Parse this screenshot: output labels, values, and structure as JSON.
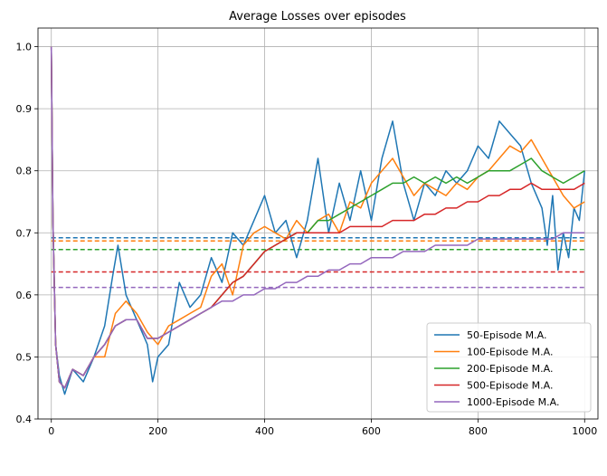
{
  "chart_data": {
    "type": "line",
    "title": "Average Losses over episodes",
    "xlabel": "",
    "ylabel": "",
    "xlim": [
      -25,
      1025
    ],
    "ylim": [
      0.4,
      1.03
    ],
    "xticks": [
      0,
      200,
      400,
      600,
      800,
      1000
    ],
    "yticks": [
      0.4,
      0.5,
      0.6,
      0.7,
      0.8,
      0.9,
      1.0
    ],
    "xtick_labels": [
      "0",
      "200",
      "400",
      "600",
      "800",
      "1000"
    ],
    "ytick_labels": [
      "0.4",
      "0.5",
      "0.6",
      "0.7",
      "0.8",
      "0.9",
      "1.0"
    ],
    "grid": true,
    "legend_position": "bottom-right",
    "series": [
      {
        "name": "50-Episode M.A.",
        "color": "#1f77b4",
        "mean": 0.692,
        "x": [
          0,
          3,
          8,
          15,
          25,
          40,
          60,
          80,
          100,
          115,
          125,
          140,
          160,
          180,
          190,
          200,
          220,
          240,
          260,
          280,
          300,
          320,
          340,
          360,
          380,
          400,
          420,
          440,
          460,
          480,
          500,
          520,
          540,
          560,
          580,
          600,
          620,
          640,
          660,
          680,
          700,
          720,
          740,
          760,
          780,
          800,
          820,
          840,
          860,
          880,
          900,
          920,
          930,
          940,
          950,
          960,
          970,
          980,
          990,
          1000
        ],
        "y": [
          1.0,
          0.72,
          0.52,
          0.47,
          0.44,
          0.48,
          0.46,
          0.5,
          0.55,
          0.63,
          0.68,
          0.6,
          0.56,
          0.52,
          0.46,
          0.5,
          0.52,
          0.62,
          0.58,
          0.6,
          0.66,
          0.62,
          0.7,
          0.68,
          0.72,
          0.76,
          0.7,
          0.72,
          0.66,
          0.72,
          0.82,
          0.7,
          0.78,
          0.72,
          0.8,
          0.72,
          0.82,
          0.88,
          0.78,
          0.72,
          0.78,
          0.76,
          0.8,
          0.78,
          0.8,
          0.84,
          0.82,
          0.88,
          0.86,
          0.84,
          0.78,
          0.74,
          0.68,
          0.76,
          0.64,
          0.7,
          0.66,
          0.74,
          0.72,
          0.8
        ]
      },
      {
        "name": "100-Episode M.A.",
        "color": "#ff7f0e",
        "mean": 0.687,
        "x": [
          0,
          3,
          8,
          15,
          25,
          40,
          60,
          80,
          100,
          120,
          140,
          160,
          180,
          200,
          220,
          240,
          260,
          280,
          300,
          320,
          340,
          360,
          380,
          400,
          420,
          440,
          460,
          480,
          500,
          520,
          540,
          560,
          580,
          600,
          620,
          640,
          660,
          680,
          700,
          720,
          740,
          760,
          780,
          800,
          820,
          840,
          860,
          880,
          900,
          920,
          940,
          960,
          980,
          1000
        ],
        "y": [
          1.0,
          0.72,
          0.52,
          0.46,
          0.45,
          0.48,
          0.47,
          0.5,
          0.5,
          0.57,
          0.59,
          0.57,
          0.54,
          0.52,
          0.55,
          0.56,
          0.57,
          0.58,
          0.63,
          0.65,
          0.6,
          0.68,
          0.7,
          0.71,
          0.7,
          0.69,
          0.72,
          0.7,
          0.72,
          0.73,
          0.7,
          0.75,
          0.74,
          0.78,
          0.8,
          0.82,
          0.79,
          0.76,
          0.78,
          0.77,
          0.76,
          0.78,
          0.77,
          0.79,
          0.8,
          0.82,
          0.84,
          0.83,
          0.85,
          0.82,
          0.79,
          0.76,
          0.74,
          0.75
        ]
      },
      {
        "name": "200-Episode M.A.",
        "color": "#2ca02c",
        "mean": 0.673,
        "x": [
          0,
          3,
          8,
          15,
          25,
          40,
          60,
          80,
          100,
          120,
          140,
          160,
          180,
          200,
          220,
          240,
          260,
          280,
          300,
          320,
          340,
          360,
          380,
          400,
          420,
          440,
          460,
          480,
          500,
          520,
          540,
          560,
          580,
          600,
          620,
          640,
          660,
          680,
          700,
          720,
          740,
          760,
          780,
          800,
          820,
          840,
          860,
          880,
          900,
          920,
          940,
          960,
          980,
          1000
        ],
        "y": [
          1.0,
          0.72,
          0.52,
          0.46,
          0.45,
          0.48,
          0.47,
          0.5,
          0.52,
          0.55,
          0.56,
          0.56,
          0.53,
          0.53,
          0.54,
          0.55,
          0.56,
          0.57,
          0.58,
          0.6,
          0.62,
          0.63,
          0.65,
          0.67,
          0.68,
          0.69,
          0.7,
          0.7,
          0.72,
          0.72,
          0.73,
          0.74,
          0.75,
          0.76,
          0.77,
          0.78,
          0.78,
          0.79,
          0.78,
          0.79,
          0.78,
          0.79,
          0.78,
          0.79,
          0.8,
          0.8,
          0.8,
          0.81,
          0.82,
          0.8,
          0.79,
          0.78,
          0.79,
          0.8
        ]
      },
      {
        "name": "500-Episode M.A.",
        "color": "#d62728",
        "mean": 0.637,
        "x": [
          0,
          3,
          8,
          15,
          25,
          40,
          60,
          80,
          100,
          120,
          140,
          160,
          180,
          200,
          220,
          240,
          260,
          280,
          300,
          320,
          340,
          360,
          380,
          400,
          420,
          440,
          460,
          480,
          500,
          520,
          540,
          560,
          580,
          600,
          620,
          640,
          660,
          680,
          700,
          720,
          740,
          760,
          780,
          800,
          820,
          840,
          860,
          880,
          900,
          920,
          940,
          960,
          980,
          1000
        ],
        "y": [
          1.0,
          0.72,
          0.52,
          0.46,
          0.45,
          0.48,
          0.47,
          0.5,
          0.52,
          0.55,
          0.56,
          0.56,
          0.53,
          0.53,
          0.54,
          0.55,
          0.56,
          0.57,
          0.58,
          0.6,
          0.62,
          0.63,
          0.65,
          0.67,
          0.68,
          0.69,
          0.7,
          0.7,
          0.7,
          0.7,
          0.7,
          0.71,
          0.71,
          0.71,
          0.71,
          0.72,
          0.72,
          0.72,
          0.73,
          0.73,
          0.74,
          0.74,
          0.75,
          0.75,
          0.76,
          0.76,
          0.77,
          0.77,
          0.78,
          0.77,
          0.77,
          0.77,
          0.77,
          0.78
        ]
      },
      {
        "name": "1000-Episode M.A.",
        "color": "#9467bd",
        "mean": 0.612,
        "x": [
          0,
          3,
          8,
          15,
          25,
          40,
          60,
          80,
          100,
          120,
          140,
          160,
          180,
          200,
          220,
          240,
          260,
          280,
          300,
          320,
          340,
          360,
          380,
          400,
          420,
          440,
          460,
          480,
          500,
          520,
          540,
          560,
          580,
          600,
          620,
          640,
          660,
          680,
          700,
          720,
          740,
          760,
          780,
          800,
          820,
          840,
          860,
          880,
          900,
          920,
          940,
          960,
          980,
          1000
        ],
        "y": [
          1.0,
          0.72,
          0.52,
          0.46,
          0.45,
          0.48,
          0.47,
          0.5,
          0.52,
          0.55,
          0.56,
          0.56,
          0.53,
          0.53,
          0.54,
          0.55,
          0.56,
          0.57,
          0.58,
          0.59,
          0.59,
          0.6,
          0.6,
          0.61,
          0.61,
          0.62,
          0.62,
          0.63,
          0.63,
          0.64,
          0.64,
          0.65,
          0.65,
          0.66,
          0.66,
          0.66,
          0.67,
          0.67,
          0.67,
          0.68,
          0.68,
          0.68,
          0.68,
          0.69,
          0.69,
          0.69,
          0.69,
          0.69,
          0.69,
          0.69,
          0.69,
          0.7,
          0.7,
          0.7
        ]
      }
    ]
  }
}
